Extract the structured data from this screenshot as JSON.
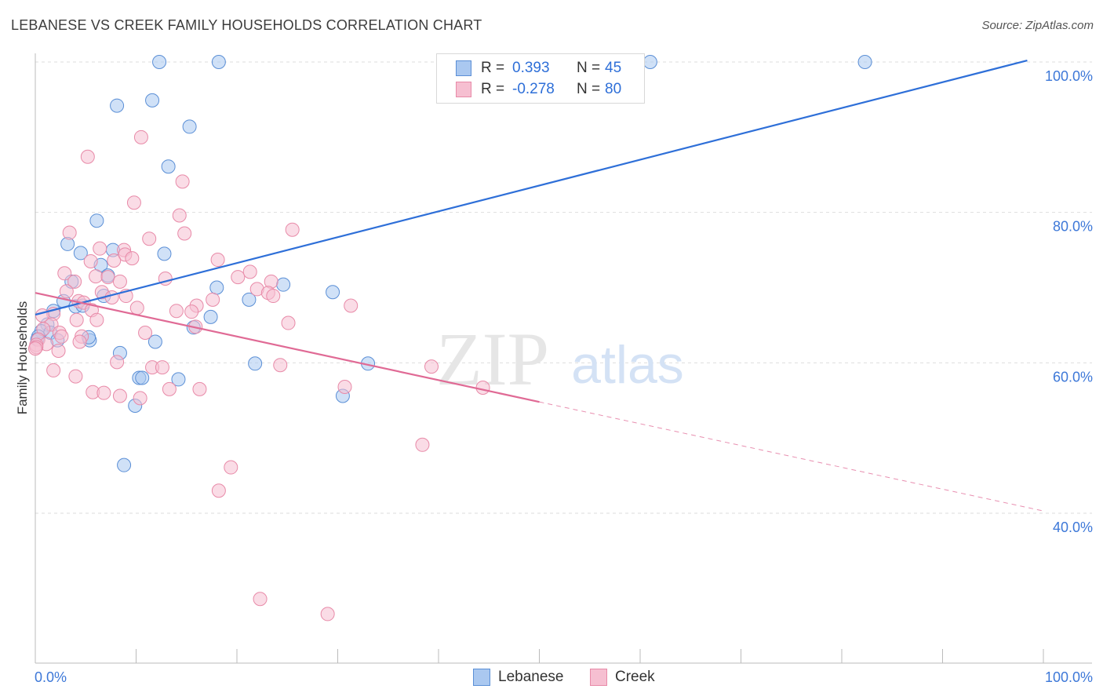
{
  "title": "LEBANESE VS CREEK FAMILY HOUSEHOLDS CORRELATION CHART",
  "source": "Source: ZipAtlas.com",
  "watermark": {
    "zip": "ZIP",
    "atlas": "atlas"
  },
  "legend": {
    "series1": {
      "r_label": "R =",
      "r_value": "0.393",
      "n_label": "N =",
      "n_value": "45"
    },
    "series2": {
      "r_label": "R =",
      "r_value": "-0.278",
      "n_label": "N =",
      "n_value": "80"
    }
  },
  "bottom_legend": {
    "series1": "Lebanese",
    "series2": "Creek"
  },
  "colors": {
    "lebanese_fill": "#aac8f0",
    "lebanese_stroke": "#5b8fd6",
    "lebanese_line": "#2e6fd8",
    "creek_fill": "#f6bfd1",
    "creek_stroke": "#e88aa8",
    "creek_line": "#e06a95",
    "grid": "#dddddd",
    "axis_text": "#3d78d8"
  },
  "chart_data": {
    "type": "scatter",
    "title": "LEBANESE VS CREEK FAMILY HOUSEHOLDS CORRELATION CHART",
    "xlabel": "",
    "ylabel": "Family Households",
    "xlim": [
      0,
      100
    ],
    "ylim": [
      20,
      101
    ],
    "x_tick_labels": [
      "0.0%",
      "100.0%"
    ],
    "y_ticks": [
      40,
      60,
      80,
      100
    ],
    "y_tick_labels": [
      "40.0%",
      "60.0%",
      "80.0%",
      "100.0%"
    ],
    "grid": true,
    "legend_placement": "top-center",
    "series": [
      {
        "name": "Lebanese",
        "trend": {
          "x": [
            0,
            98.4
          ],
          "y": [
            66.4,
            100.2
          ],
          "dashed_extension": false
        },
        "points": [
          [
            12.3,
            100.0
          ],
          [
            18.2,
            100.0
          ],
          [
            61.0,
            100.0
          ],
          [
            82.3,
            100.0
          ],
          [
            8.1,
            94.2
          ],
          [
            11.6,
            94.9
          ],
          [
            15.3,
            91.4
          ],
          [
            13.2,
            86.1
          ],
          [
            6.1,
            78.9
          ],
          [
            3.2,
            75.8
          ],
          [
            7.7,
            75.0
          ],
          [
            4.5,
            74.6
          ],
          [
            12.8,
            74.5
          ],
          [
            6.5,
            73.0
          ],
          [
            7.2,
            71.6
          ],
          [
            3.6,
            70.8
          ],
          [
            18.0,
            70.0
          ],
          [
            24.6,
            70.4
          ],
          [
            29.5,
            69.4
          ],
          [
            6.8,
            68.9
          ],
          [
            21.2,
            68.4
          ],
          [
            2.8,
            68.2
          ],
          [
            4.0,
            67.5
          ],
          [
            4.7,
            67.6
          ],
          [
            1.8,
            66.9
          ],
          [
            17.4,
            66.1
          ],
          [
            15.7,
            64.7
          ],
          [
            1.2,
            65.1
          ],
          [
            0.6,
            64.2
          ],
          [
            1.5,
            64.0
          ],
          [
            0.3,
            63.5
          ],
          [
            0.2,
            63.1
          ],
          [
            2.2,
            63.0
          ],
          [
            5.4,
            63.0
          ],
          [
            5.3,
            63.4
          ],
          [
            11.9,
            62.8
          ],
          [
            8.4,
            61.3
          ],
          [
            21.8,
            59.9
          ],
          [
            33.0,
            59.9
          ],
          [
            10.3,
            58.0
          ],
          [
            10.6,
            58.0
          ],
          [
            14.2,
            57.8
          ],
          [
            30.5,
            55.6
          ],
          [
            9.9,
            54.3
          ],
          [
            8.8,
            46.4
          ]
        ]
      },
      {
        "name": "Creek",
        "trend": {
          "x": [
            0,
            50
          ],
          "y": [
            69.3,
            54.8
          ],
          "dashed_extension": true,
          "extension_to": [
            100,
            40.3
          ]
        },
        "points": [
          [
            10.5,
            90.0
          ],
          [
            5.2,
            87.4
          ],
          [
            14.6,
            84.1
          ],
          [
            9.8,
            81.3
          ],
          [
            14.3,
            79.6
          ],
          [
            25.5,
            77.7
          ],
          [
            14.8,
            77.2
          ],
          [
            3.4,
            77.3
          ],
          [
            11.3,
            76.5
          ],
          [
            6.4,
            75.2
          ],
          [
            8.8,
            75.0
          ],
          [
            8.9,
            74.4
          ],
          [
            9.6,
            73.9
          ],
          [
            18.1,
            73.7
          ],
          [
            7.8,
            73.6
          ],
          [
            5.5,
            73.5
          ],
          [
            21.3,
            72.1
          ],
          [
            2.9,
            71.9
          ],
          [
            6.0,
            71.5
          ],
          [
            7.2,
            71.4
          ],
          [
            12.9,
            71.2
          ],
          [
            20.1,
            71.4
          ],
          [
            8.4,
            70.8
          ],
          [
            3.9,
            70.8
          ],
          [
            23.4,
            70.8
          ],
          [
            22.0,
            69.8
          ],
          [
            3.1,
            69.5
          ],
          [
            6.6,
            69.4
          ],
          [
            23.1,
            69.3
          ],
          [
            23.6,
            68.9
          ],
          [
            9.0,
            68.9
          ],
          [
            7.6,
            68.7
          ],
          [
            4.3,
            68.2
          ],
          [
            17.6,
            68.4
          ],
          [
            4.8,
            68.0
          ],
          [
            31.3,
            67.6
          ],
          [
            16.0,
            67.6
          ],
          [
            10.1,
            67.3
          ],
          [
            5.6,
            67.0
          ],
          [
            14.0,
            66.9
          ],
          [
            15.5,
            66.8
          ],
          [
            1.8,
            66.5
          ],
          [
            0.7,
            66.3
          ],
          [
            4.1,
            65.7
          ],
          [
            6.1,
            65.7
          ],
          [
            25.1,
            65.3
          ],
          [
            1.6,
            65.1
          ],
          [
            15.9,
            64.8
          ],
          [
            0.8,
            64.5
          ],
          [
            10.9,
            64.0
          ],
          [
            2.4,
            64.0
          ],
          [
            2.6,
            63.5
          ],
          [
            4.6,
            63.5
          ],
          [
            0.3,
            63.1
          ],
          [
            4.4,
            62.8
          ],
          [
            1.1,
            62.5
          ],
          [
            0.1,
            62.4
          ],
          [
            0.1,
            62.1
          ],
          [
            2.3,
            61.6
          ],
          [
            8.1,
            60.1
          ],
          [
            24.3,
            59.7
          ],
          [
            39.3,
            59.5
          ],
          [
            11.6,
            59.4
          ],
          [
            12.6,
            59.4
          ],
          [
            1.8,
            59.0
          ],
          [
            4.0,
            58.2
          ],
          [
            30.7,
            56.8
          ],
          [
            44.4,
            56.7
          ],
          [
            13.3,
            56.5
          ],
          [
            16.3,
            56.5
          ],
          [
            5.7,
            56.1
          ],
          [
            6.8,
            56.0
          ],
          [
            8.4,
            55.6
          ],
          [
            10.4,
            55.3
          ],
          [
            38.4,
            49.1
          ],
          [
            19.4,
            46.1
          ],
          [
            18.2,
            43.0
          ],
          [
            22.3,
            28.6
          ],
          [
            29.0,
            26.6
          ],
          [
            0.0,
            61.9
          ]
        ]
      }
    ]
  }
}
